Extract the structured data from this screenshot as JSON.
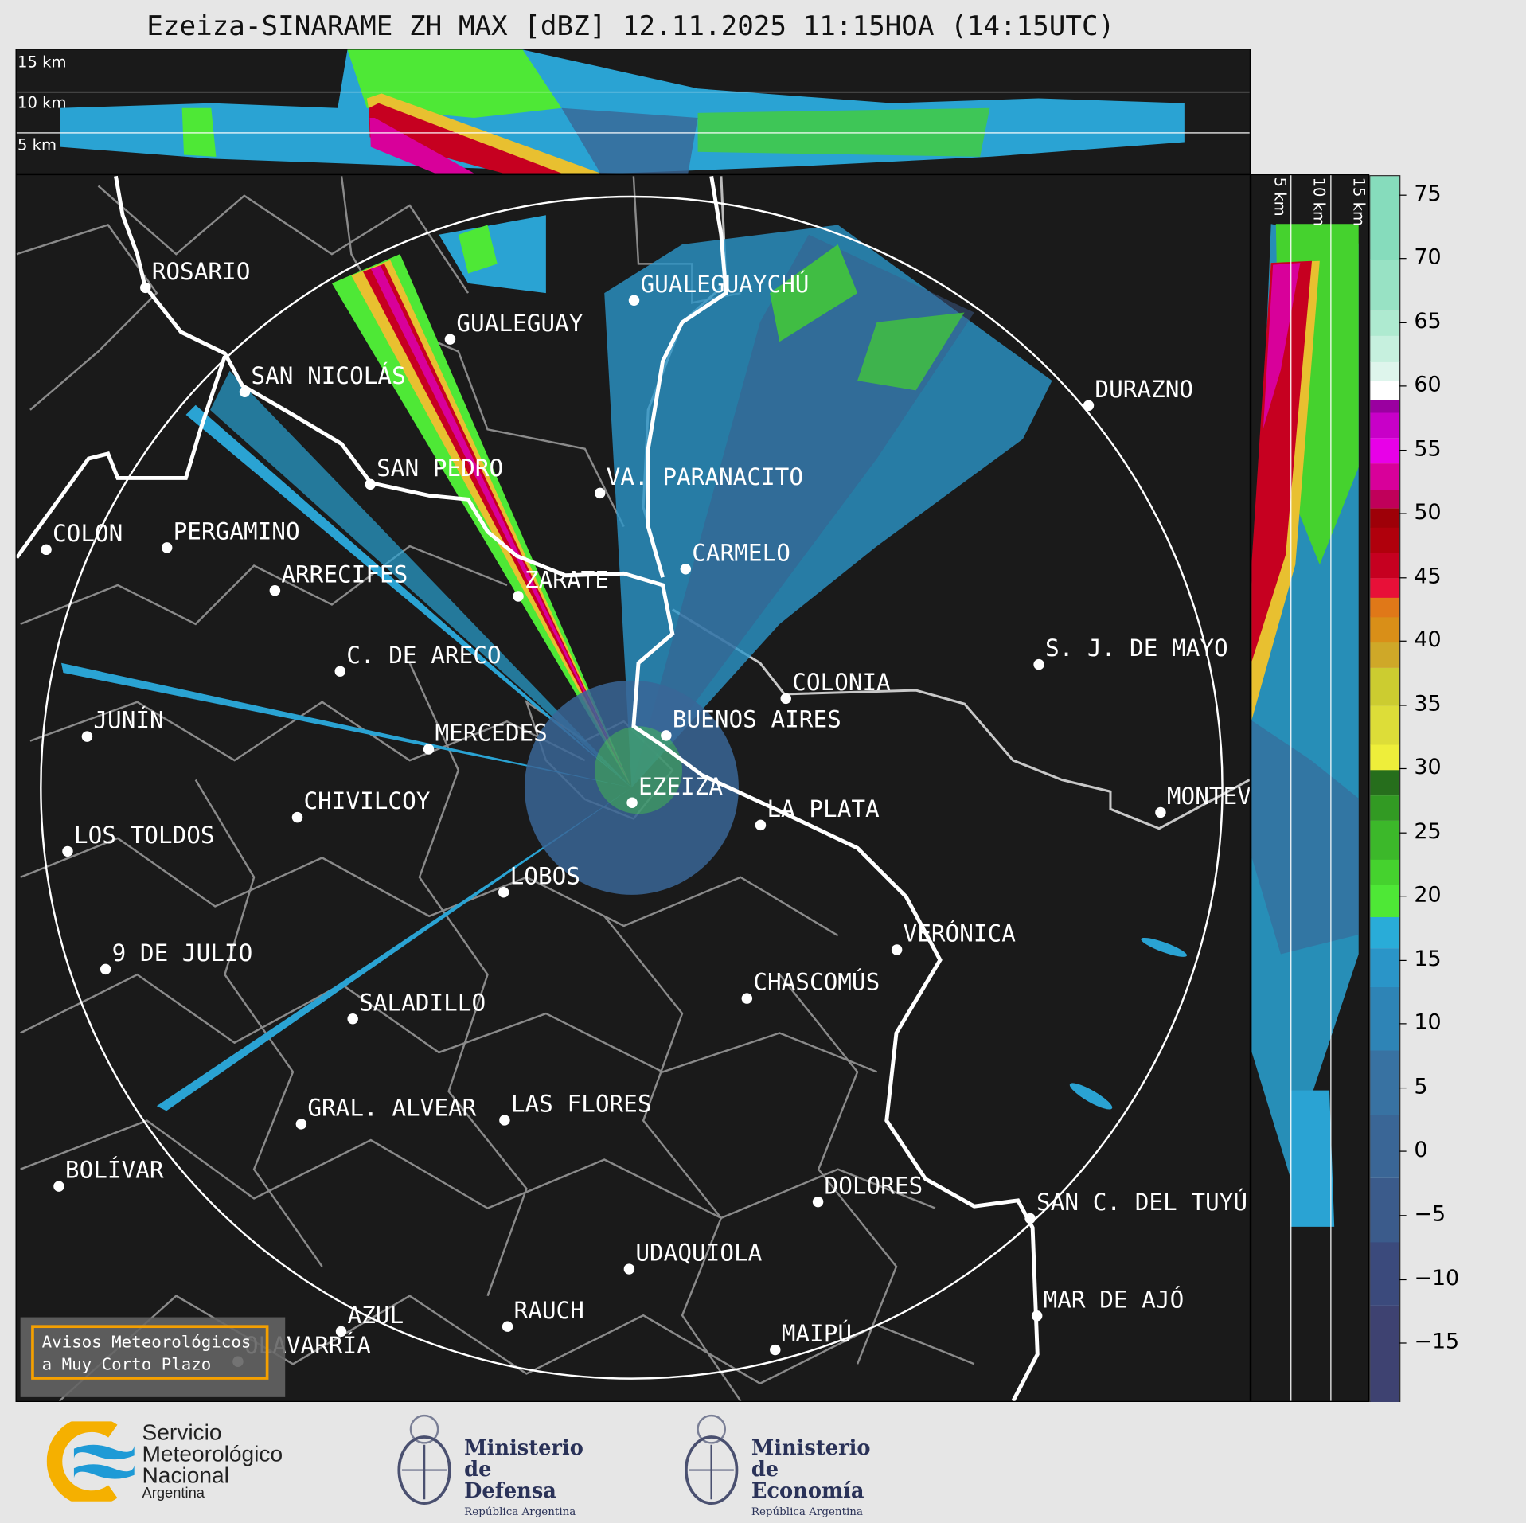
{
  "title": "Ezeiza-SINARAME ZH MAX [dBZ] 12.11.2025 11:15HOA (14:15UTC)",
  "top_panel": {
    "labels": [
      "15 km",
      "10 km",
      "5 km"
    ]
  },
  "side_panel": {
    "labels": [
      "5 km",
      "10 km",
      "15 km"
    ]
  },
  "cities": [
    {
      "name": "ROSARIO"
    },
    {
      "name": "GUALEGUAYCHÚ"
    },
    {
      "name": "GUALEGUAY"
    },
    {
      "name": "SAN NICOLÁS"
    },
    {
      "name": "DURAZNO"
    },
    {
      "name": "SAN PEDRO"
    },
    {
      "name": "VA. PARANACITO"
    },
    {
      "name": "COLON"
    },
    {
      "name": "PERGAMINO"
    },
    {
      "name": "CARMELO"
    },
    {
      "name": "ARRECIFES"
    },
    {
      "name": "ZÁRATE"
    },
    {
      "name": "S. J. DE MAYO"
    },
    {
      "name": "C. DE ARECO"
    },
    {
      "name": "COLONIA"
    },
    {
      "name": "BUENOS AIRES"
    },
    {
      "name": "JUNÍN"
    },
    {
      "name": "MERCEDES"
    },
    {
      "name": "EZEIZA"
    },
    {
      "name": "MONTEVIDEO"
    },
    {
      "name": "CHIVILCOY"
    },
    {
      "name": "LA PLATA"
    },
    {
      "name": "LOS TOLDOS"
    },
    {
      "name": "LOBOS"
    },
    {
      "name": "VERÓNICA"
    },
    {
      "name": "9 DE JULIO"
    },
    {
      "name": "CHASCOMÚS"
    },
    {
      "name": "SALADILLO"
    },
    {
      "name": "GRAL. ALVEAR"
    },
    {
      "name": "LAS FLORES"
    },
    {
      "name": "BOLÍVAR"
    },
    {
      "name": "DOLORES"
    },
    {
      "name": "SAN C. DEL TUYÚ"
    },
    {
      "name": "UDAQUIOLA"
    },
    {
      "name": "MAR DE AJÓ"
    },
    {
      "name": "RAUCH"
    },
    {
      "name": "AZUL"
    },
    {
      "name": "OLAVARRÍA"
    },
    {
      "name": "MAIPÚ"
    }
  ],
  "alert_box": {
    "line1": "Avisos Meteorológicos",
    "line2": "a Muy Corto Plazo",
    "border_color": "#f5a000"
  },
  "colorbar": {
    "unit": "dBZ",
    "range": [
      -19.5,
      76.5
    ],
    "ticks": [
      "75",
      "70",
      "65",
      "60",
      "55",
      "50",
      "45",
      "40",
      "35",
      "30",
      "25",
      "20",
      "15",
      "10",
      "5",
      "0",
      "−5",
      "−10",
      "−15"
    ],
    "bins": [
      {
        "from": -19.5,
        "to": -12,
        "color": "#3e4271"
      },
      {
        "from": -12,
        "to": -7,
        "color": "#3b4a7c"
      },
      {
        "from": -7,
        "to": -2,
        "color": "#3b5b8b"
      },
      {
        "from": -2,
        "to": 3,
        "color": "#3a6696"
      },
      {
        "from": 3,
        "to": 8,
        "color": "#3872a2"
      },
      {
        "from": 8,
        "to": 13,
        "color": "#2e84b6"
      },
      {
        "from": 13,
        "to": 16,
        "color": "#2a95c8"
      },
      {
        "from": 16,
        "to": 18.5,
        "color": "#29acd8"
      },
      {
        "from": 18.5,
        "to": 21,
        "color": "#4ee836"
      },
      {
        "from": 21,
        "to": 23,
        "color": "#45d22e"
      },
      {
        "from": 23,
        "to": 26,
        "color": "#3cb82a"
      },
      {
        "from": 26,
        "to": 28,
        "color": "#329a23"
      },
      {
        "from": 28,
        "to": 30,
        "color": "#266e1c"
      },
      {
        "from": 30,
        "to": 32,
        "color": "#eeee3a"
      },
      {
        "from": 32,
        "to": 35,
        "color": "#dddd38"
      },
      {
        "from": 35,
        "to": 38,
        "color": "#cccc30"
      },
      {
        "from": 38,
        "to": 40,
        "color": "#cfa828"
      },
      {
        "from": 40,
        "to": 42,
        "color": "#d98f18"
      },
      {
        "from": 42,
        "to": 43.5,
        "color": "#e07818"
      },
      {
        "from": 43.5,
        "to": 45,
        "color": "#e81038"
      },
      {
        "from": 45,
        "to": 47,
        "color": "#c60020"
      },
      {
        "from": 47,
        "to": 49,
        "color": "#b0000c"
      },
      {
        "from": 49,
        "to": 50.5,
        "color": "#9e0008"
      },
      {
        "from": 50.5,
        "to": 52,
        "color": "#c0005a"
      },
      {
        "from": 52,
        "to": 54,
        "color": "#d8009a"
      },
      {
        "from": 54,
        "to": 56,
        "color": "#e800e8"
      },
      {
        "from": 56,
        "to": 58,
        "color": "#c800c8"
      },
      {
        "from": 58,
        "to": 59,
        "color": "#9a00a0"
      },
      {
        "from": 59,
        "to": 60.5,
        "color": "#ffffff"
      },
      {
        "from": 60.5,
        "to": 62,
        "color": "#def5ec"
      },
      {
        "from": 62,
        "to": 64,
        "color": "#c6f0de"
      },
      {
        "from": 64,
        "to": 66,
        "color": "#aeead0"
      },
      {
        "from": 66,
        "to": 70,
        "color": "#98e2c4"
      },
      {
        "from": 70,
        "to": 76.5,
        "color": "#86dcbc"
      }
    ]
  },
  "logos": {
    "smn": {
      "line1": "Servicio",
      "line2": "Meteorológico",
      "line3": "Nacional",
      "line4": "Argentina"
    },
    "defensa": {
      "line1": "Ministerio",
      "line2": "de Defensa",
      "line3": "República Argentina"
    },
    "economia": {
      "line1": "Ministerio",
      "line2": "de Economía",
      "line3": "República Argentina"
    }
  }
}
